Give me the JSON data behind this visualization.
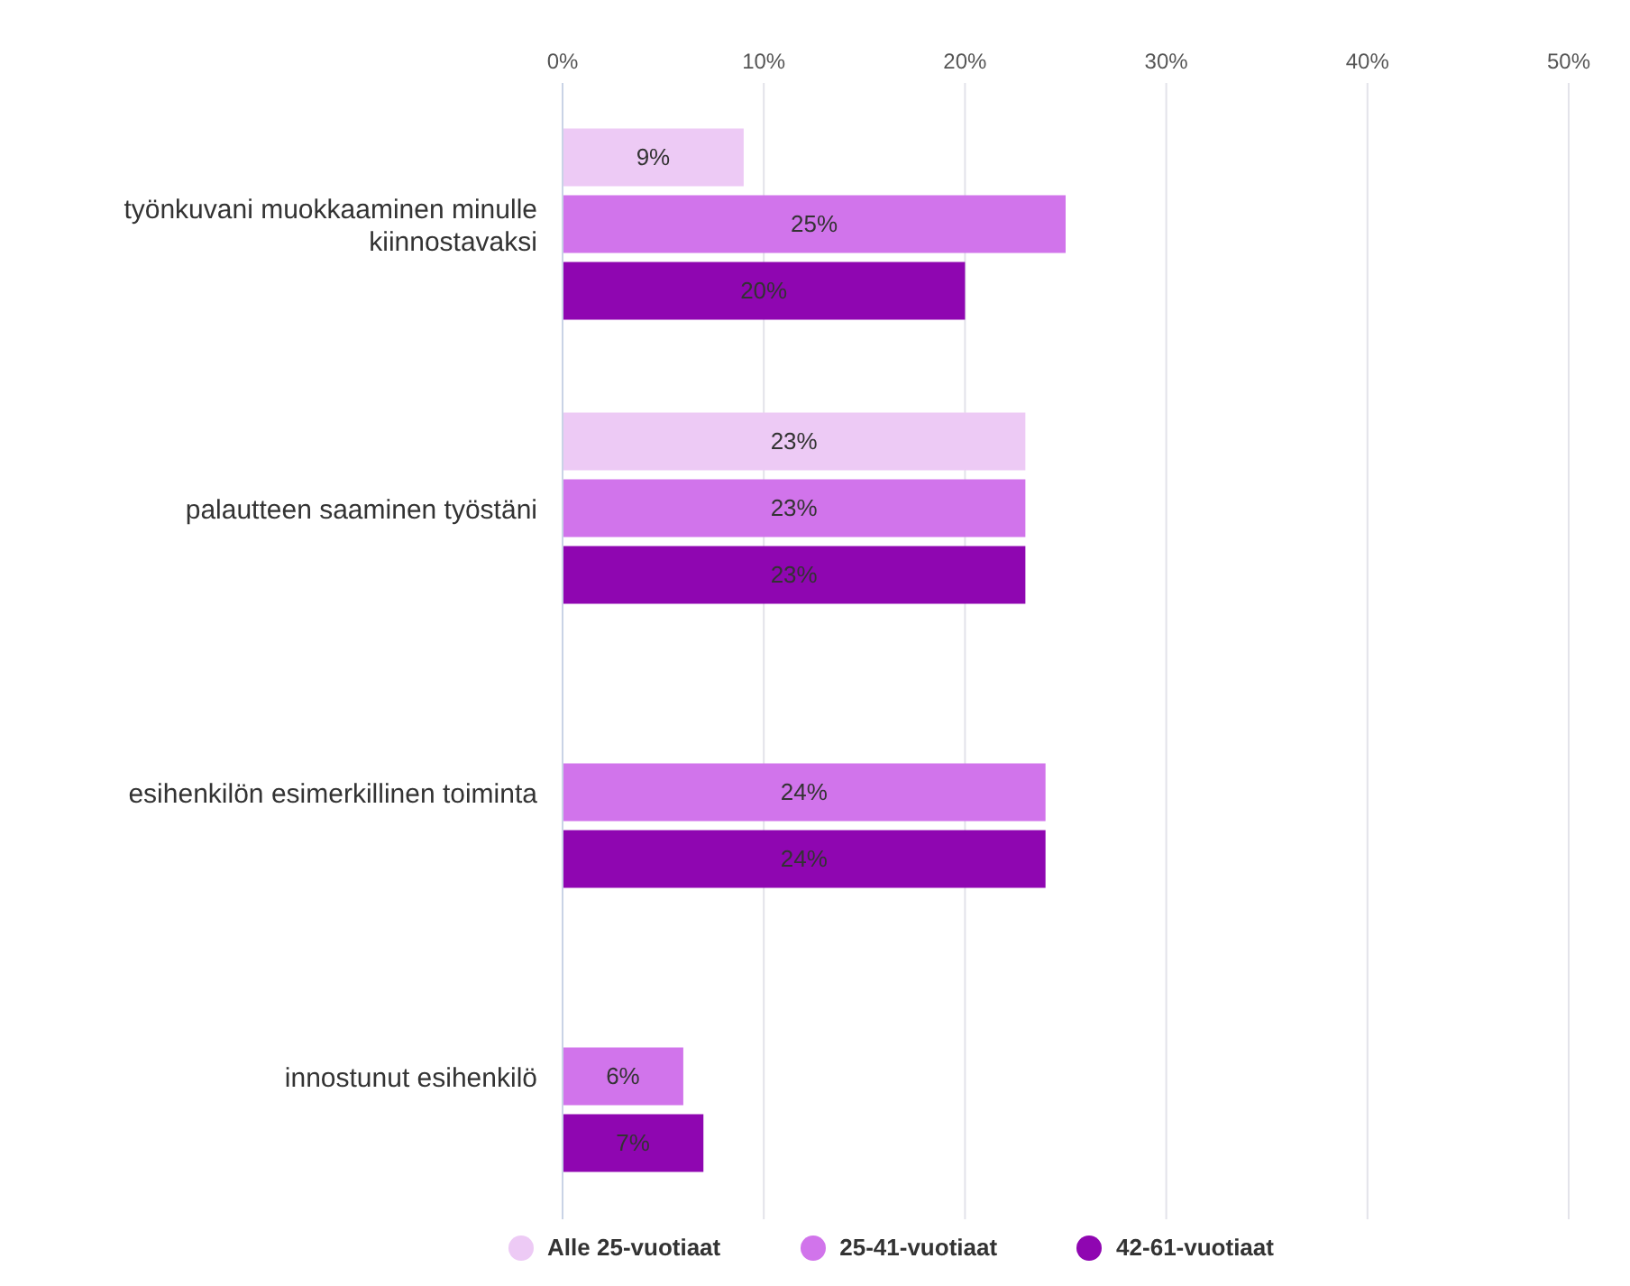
{
  "chart_data": {
    "type": "bar",
    "orientation": "horizontal",
    "categories": [
      "työnkuvani muokkaaminen minulle kiinnostavaksi",
      "palautteen saaminen työstäni",
      "esihenkilön esimerkillinen toiminta",
      "innostunut esihenkilö"
    ],
    "series": [
      {
        "name": "Alle 25-vuotiaat",
        "color": "#edcaf5",
        "values": [
          9,
          23,
          null,
          null
        ],
        "value_labels": [
          "9%",
          "23%",
          null,
          null
        ]
      },
      {
        "name": "25-41-vuotiaat",
        "color": "#d174eb",
        "values": [
          25,
          23,
          24,
          6
        ],
        "value_labels": [
          "25%",
          "23%",
          "24%",
          "6%"
        ]
      },
      {
        "name": "42-61-vuotiaat",
        "color": "#8f06b1",
        "values": [
          20,
          23,
          24,
          7
        ],
        "value_labels": [
          "20%",
          "23%",
          "24%",
          "7%"
        ]
      }
    ],
    "xlim": [
      0,
      50
    ],
    "xticks": [
      {
        "value": 0,
        "label": "0%"
      },
      {
        "value": 10,
        "label": "10%"
      },
      {
        "value": 20,
        "label": "20%"
      },
      {
        "value": 30,
        "label": "30%"
      },
      {
        "value": 40,
        "label": "40%"
      },
      {
        "value": 50,
        "label": "50%"
      }
    ],
    "grid": "x",
    "legend": "bottom"
  }
}
